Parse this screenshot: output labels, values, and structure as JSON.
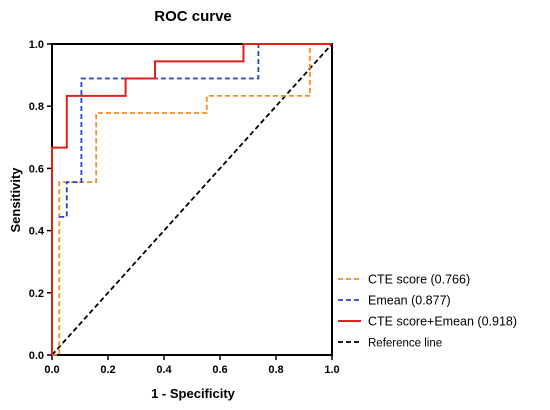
{
  "chart_data": {
    "type": "line",
    "title": "ROC curve",
    "xlabel": "1 - Specificity",
    "ylabel": "Sensitivity",
    "xlim": [
      0.0,
      1.0
    ],
    "ylim": [
      0.0,
      1.0
    ],
    "xticks": [
      "0.0",
      "0.2",
      "0.4",
      "0.6",
      "0.8",
      "1.0"
    ],
    "yticks": [
      "0.0",
      "0.2",
      "0.4",
      "0.6",
      "0.8",
      "1.0"
    ],
    "grid": false,
    "legend_position": "bottom-right, outside plot",
    "series": [
      {
        "name": "CTE score (0.766)",
        "color": "#f28c28",
        "dash": "dashed",
        "x": [
          0.0,
          0.026,
          0.026,
          0.026,
          0.158,
          0.158,
          0.553,
          0.553,
          0.921,
          0.921,
          1.0
        ],
        "y": [
          0.0,
          0.0,
          0.444,
          0.556,
          0.556,
          0.778,
          0.778,
          0.833,
          0.833,
          1.0,
          1.0
        ]
      },
      {
        "name": "Emean (0.877)",
        "color": "#2c3fd6",
        "dash": "dashed",
        "x": [
          0.026,
          0.053,
          0.053,
          0.105,
          0.105,
          0.737,
          0.737,
          1.0
        ],
        "y": [
          0.444,
          0.444,
          0.556,
          0.556,
          0.889,
          0.889,
          1.0,
          1.0
        ]
      },
      {
        "name": "CTE score+Emean (0.918)",
        "color": "#e0201b",
        "dash": "solid",
        "x": [
          0.0,
          0.0,
          0.053,
          0.053,
          0.263,
          0.263,
          0.368,
          0.368,
          0.684,
          0.684,
          1.0
        ],
        "y": [
          0.0,
          0.667,
          0.667,
          0.833,
          0.833,
          0.889,
          0.889,
          0.944,
          0.944,
          1.0,
          1.0
        ]
      },
      {
        "name": "Reference line",
        "color": "#000000",
        "dash": "dashed",
        "x": [
          0.0,
          1.0
        ],
        "y": [
          0.0,
          1.0
        ]
      }
    ]
  }
}
